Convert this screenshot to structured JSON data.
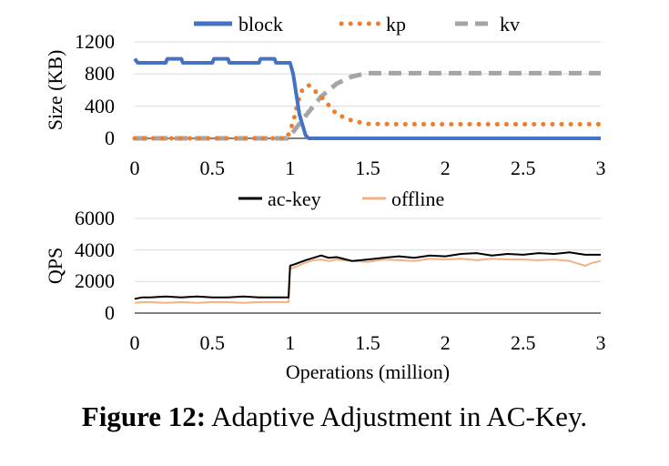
{
  "caption": {
    "label": "Figure 12:",
    "text": "Adaptive Adjustment in AC-Key."
  },
  "chart_data": [
    {
      "type": "line",
      "ylabel": "Size (KB)",
      "xlabel": "",
      "xlim": [
        0,
        3
      ],
      "ylim": [
        0,
        1200
      ],
      "x_ticks": [
        "0",
        "0.5",
        "1",
        "1.5",
        "2",
        "2.5",
        "3"
      ],
      "y_ticks": [
        "0",
        "400",
        "800",
        "1200"
      ],
      "legend_position": "top",
      "series": [
        {
          "name": "block",
          "color": "#4472C4",
          "style": "solid",
          "x": [
            0,
            0.02,
            0.2,
            0.21,
            0.3,
            0.31,
            0.5,
            0.51,
            0.6,
            0.61,
            0.8,
            0.81,
            0.9,
            0.91,
            1.0,
            1.02,
            1.06,
            1.1,
            1.12,
            1.5,
            2.0,
            2.5,
            3.0
          ],
          "y": [
            990,
            940,
            940,
            990,
            990,
            940,
            940,
            990,
            990,
            940,
            940,
            990,
            990,
            940,
            940,
            800,
            300,
            40,
            0,
            0,
            0,
            0,
            0
          ]
        },
        {
          "name": "kp",
          "color": "#ED7D31",
          "style": "dotted",
          "x": [
            0,
            0.5,
            0.98,
            1.02,
            1.05,
            1.08,
            1.12,
            1.2,
            1.3,
            1.4,
            1.5,
            1.7,
            2.0,
            2.5,
            3.0
          ],
          "y": [
            0,
            0,
            0,
            200,
            450,
            610,
            660,
            520,
            300,
            220,
            180,
            175,
            175,
            175,
            175
          ]
        },
        {
          "name": "kv",
          "color": "#A5A5A5",
          "style": "dashed",
          "x": [
            0,
            0.5,
            0.98,
            1.02,
            1.1,
            1.2,
            1.3,
            1.4,
            1.5,
            1.7,
            2.0,
            2.5,
            3.0
          ],
          "y": [
            0,
            0,
            0,
            80,
            280,
            520,
            680,
            770,
            810,
            810,
            810,
            810,
            810
          ]
        }
      ]
    },
    {
      "type": "line",
      "ylabel": "QPS",
      "xlabel": "Operations (million)",
      "xlim": [
        0,
        3
      ],
      "ylim": [
        0,
        6000
      ],
      "x_ticks": [
        "0",
        "0.5",
        "1",
        "1.5",
        "2",
        "2.5",
        "3"
      ],
      "y_ticks": [
        "0",
        "2000",
        "4000",
        "6000"
      ],
      "legend_position": "top",
      "series": [
        {
          "name": "ac-key",
          "color": "#000000",
          "x": [
            0,
            0.05,
            0.1,
            0.2,
            0.3,
            0.4,
            0.5,
            0.6,
            0.7,
            0.8,
            0.9,
            0.99,
            1.0,
            1.03,
            1.1,
            1.15,
            1.2,
            1.25,
            1.3,
            1.4,
            1.5,
            1.6,
            1.7,
            1.8,
            1.9,
            2.0,
            2.1,
            2.2,
            2.3,
            2.4,
            2.5,
            2.6,
            2.7,
            2.8,
            2.9,
            3.0
          ],
          "y": [
            900,
            1000,
            1000,
            1050,
            1000,
            1050,
            1000,
            1000,
            1050,
            1000,
            1000,
            1000,
            3000,
            3100,
            3350,
            3500,
            3650,
            3500,
            3550,
            3300,
            3400,
            3500,
            3600,
            3500,
            3650,
            3600,
            3750,
            3800,
            3650,
            3750,
            3700,
            3800,
            3750,
            3850,
            3700,
            3700
          ]
        },
        {
          "name": "offline",
          "color": "#F4B183",
          "x": [
            0,
            0.05,
            0.1,
            0.2,
            0.3,
            0.4,
            0.5,
            0.6,
            0.7,
            0.8,
            0.9,
            0.99,
            1.0,
            1.03,
            1.1,
            1.15,
            1.2,
            1.25,
            1.3,
            1.4,
            1.5,
            1.6,
            1.7,
            1.8,
            1.9,
            2.0,
            2.1,
            2.2,
            2.3,
            2.4,
            2.5,
            2.6,
            2.7,
            2.8,
            2.9,
            2.95,
            3.0
          ],
          "y": [
            650,
            700,
            700,
            650,
            700,
            650,
            700,
            700,
            650,
            700,
            700,
            700,
            2800,
            2900,
            3200,
            3350,
            3400,
            3300,
            3400,
            3300,
            3250,
            3400,
            3350,
            3300,
            3450,
            3400,
            3450,
            3350,
            3450,
            3400,
            3400,
            3350,
            3400,
            3300,
            3000,
            3200,
            3300
          ]
        }
      ]
    }
  ]
}
